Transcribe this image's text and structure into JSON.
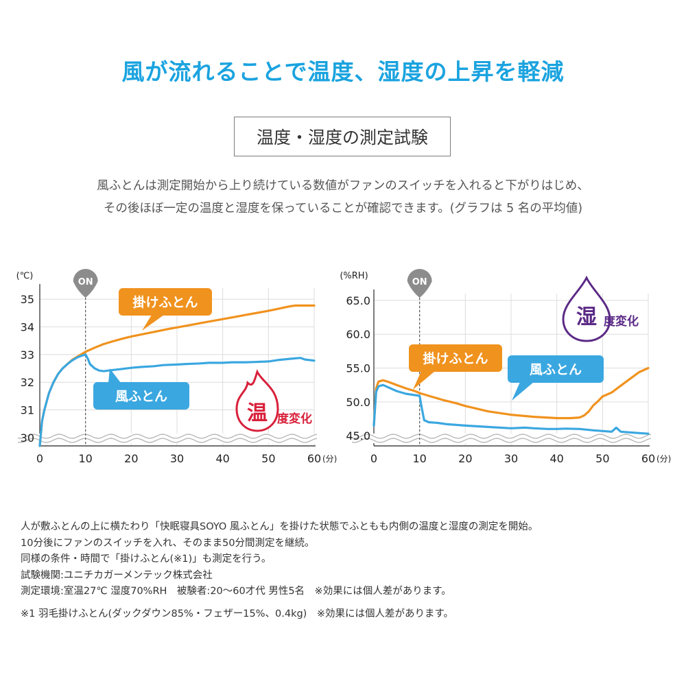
{
  "header": {
    "title": "風が流れることで温度、湿度の上昇を軽減",
    "test_label": "温度・湿度の測定試験",
    "intro_line1": "風ふとんは測定開始から上り続けている数値がファンのスイッチを入れると下がりはじめ、",
    "intro_line2": "その後ほぼ一定の温度と湿度を保っていることが確認できます。(グラフは 5 名の平均値)"
  },
  "colors": {
    "accent": "#1aa3df",
    "orange": "#f0921e",
    "blue": "#3aa7e0",
    "red": "#d8203a",
    "purple": "#5b2a86",
    "on_badge": "#8c8c8c"
  },
  "chart_data": [
    {
      "type": "line",
      "yunit": "(℃)",
      "xunit": "(分)",
      "xlim": [
        0,
        60
      ],
      "ylim": [
        29.7,
        35.4
      ],
      "xticks": [
        0,
        10,
        20,
        30,
        40,
        50,
        60
      ],
      "xtick_labels": [
        "0",
        "10",
        "20",
        "30",
        "40",
        "50",
        "60"
      ],
      "yticks": [
        30,
        31,
        32,
        33,
        34,
        35
      ],
      "ytick_labels": [
        "30",
        "31",
        "32",
        "33",
        "34",
        "35"
      ],
      "grid": true,
      "on_marker": {
        "x": 10,
        "label": "ON"
      },
      "badge": {
        "big": "温",
        "small": "度変化"
      },
      "series": [
        {
          "name": "掛けふとん",
          "color": "orange",
          "x": [
            0,
            0.5,
            1,
            2,
            3,
            4,
            5,
            6,
            7,
            8,
            9,
            10,
            12,
            14,
            16,
            18,
            20,
            22,
            25,
            28,
            30,
            33,
            35,
            38,
            40,
            43,
            45,
            48,
            50,
            52,
            54,
            55,
            56,
            58,
            60
          ],
          "y": [
            29.7,
            30.6,
            31.0,
            31.6,
            32.0,
            32.3,
            32.5,
            32.65,
            32.8,
            32.9,
            33.0,
            33.1,
            33.25,
            33.38,
            33.48,
            33.57,
            33.65,
            33.72,
            33.82,
            33.92,
            33.98,
            34.07,
            34.13,
            34.22,
            34.28,
            34.37,
            34.43,
            34.52,
            34.58,
            34.65,
            34.72,
            34.75,
            34.77,
            34.77,
            34.77
          ]
        },
        {
          "name": "風ふとん",
          "color": "blue",
          "x": [
            0,
            0.5,
            1,
            2,
            3,
            4,
            5,
            6,
            7,
            8,
            9,
            10,
            10.5,
            11,
            12,
            13,
            14,
            15,
            18,
            20,
            22,
            25,
            27,
            30,
            32,
            35,
            37,
            40,
            42,
            45,
            47,
            50,
            52,
            55,
            57,
            58,
            60
          ],
          "y": [
            29.7,
            30.6,
            31.0,
            31.6,
            32.0,
            32.3,
            32.5,
            32.65,
            32.78,
            32.88,
            32.95,
            33.0,
            32.85,
            32.65,
            32.5,
            32.42,
            32.4,
            32.42,
            32.48,
            32.52,
            32.55,
            32.58,
            32.62,
            32.64,
            32.66,
            32.68,
            32.7,
            32.7,
            32.72,
            32.72,
            32.73,
            32.75,
            32.8,
            32.85,
            32.88,
            32.82,
            32.78
          ]
        }
      ]
    },
    {
      "type": "line",
      "yunit": "(%RH)",
      "xunit": "(分)",
      "xlim": [
        0,
        60
      ],
      "ylim": [
        43.5,
        66.0
      ],
      "xticks": [
        0,
        10,
        20,
        30,
        40,
        50,
        60
      ],
      "xtick_labels": [
        "0",
        "10",
        "20",
        "30",
        "40",
        "50",
        "60"
      ],
      "yticks": [
        45.0,
        50.0,
        55.0,
        60.0,
        65.0
      ],
      "ytick_labels": [
        "45.0",
        "50.0",
        "55.0",
        "60.0",
        "65.0"
      ],
      "grid": true,
      "on_marker": {
        "x": 10,
        "label": "ON"
      },
      "badge": {
        "big": "湿",
        "small": "度変化"
      },
      "series": [
        {
          "name": "掛けふとん",
          "color": "orange",
          "x": [
            0,
            0.5,
            1,
            2,
            3,
            5,
            7,
            9,
            10,
            12,
            15,
            18,
            20,
            25,
            30,
            35,
            40,
            43,
            45,
            46,
            47,
            48,
            49,
            50,
            52,
            54,
            56,
            58,
            60
          ],
          "y": [
            46.5,
            52.0,
            53.0,
            53.2,
            53.0,
            52.5,
            52.0,
            51.6,
            51.3,
            50.9,
            50.3,
            49.8,
            49.4,
            48.6,
            48.1,
            47.8,
            47.6,
            47.6,
            47.7,
            48.0,
            48.6,
            49.5,
            50.1,
            50.8,
            51.4,
            52.4,
            53.4,
            54.4,
            55.0
          ]
        },
        {
          "name": "風ふとん",
          "color": "blue",
          "x": [
            0,
            0.5,
            1,
            2,
            3,
            5,
            7,
            9,
            10,
            10.5,
            11,
            12,
            14,
            16,
            18,
            20,
            25,
            30,
            33,
            35,
            38,
            40,
            42,
            45,
            48,
            50,
            52,
            53,
            54,
            56,
            58,
            60
          ],
          "y": [
            46.5,
            51.5,
            52.3,
            52.5,
            52.2,
            51.6,
            51.2,
            51.0,
            50.9,
            49.0,
            47.3,
            47.0,
            46.9,
            46.7,
            46.6,
            46.5,
            46.3,
            46.1,
            46.2,
            46.1,
            46.0,
            46.0,
            46.05,
            46.0,
            45.8,
            45.7,
            45.6,
            46.2,
            45.6,
            45.5,
            45.4,
            45.3
          ]
        }
      ]
    }
  ],
  "notes": [
    "人が敷ふとんの上に横たわり「快眠寝具SOYO 風ふとん」を掛けた状態でふともも内側の温度と湿度の測定を開始。",
    "10分後にファンのスイッチを入れ、そのまま50分間測定を継続。",
    "同様の条件・時間で「掛けふとん(※1)」も測定を行う。",
    "試験機関:ユニチカガーメンテック株式会社",
    "測定環境:室温27℃ 湿度70%RH　被験者:20〜60才代 男性5名　※効果には個人差があります。",
    "※1 羽毛掛けふとん(ダックダウン85%・フェザー15%、0.4kg)　※効果には個人差があります。"
  ]
}
